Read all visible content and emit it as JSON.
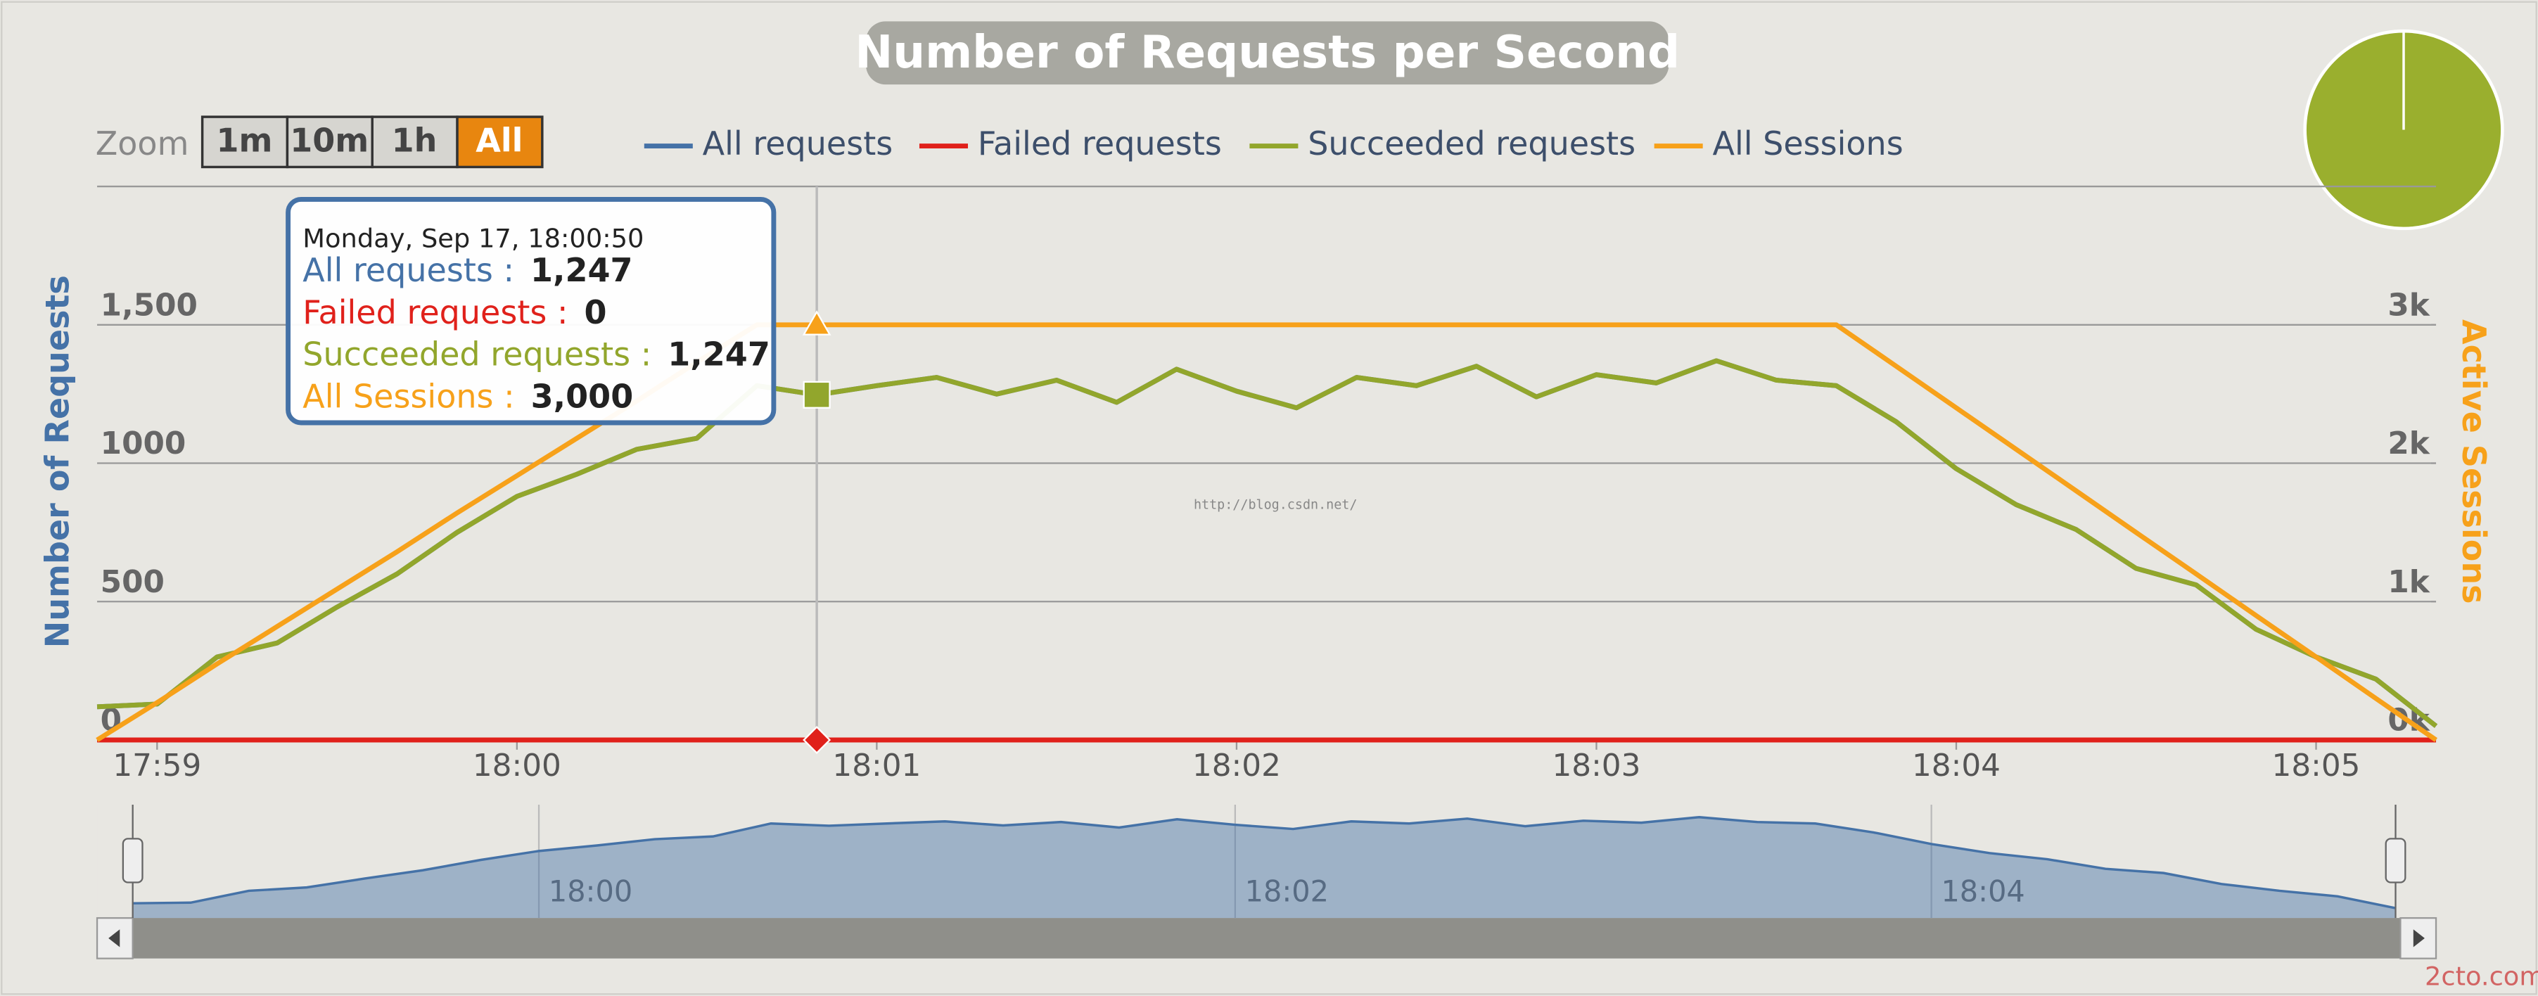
{
  "chart_data": {
    "type": "line",
    "title": "Number of Requests per Second",
    "y_title": "Number of Requests",
    "y2_title": "Active Sessions",
    "zoom": {
      "label": "Zoom",
      "buttons": [
        "1m",
        "10m",
        "1h",
        "All"
      ],
      "selected": 3
    },
    "x": [
      "17:58:50",
      "17:59:00",
      "17:59:10",
      "17:59:20",
      "17:59:30",
      "17:59:40",
      "17:59:50",
      "18:00:00",
      "18:00:10",
      "18:00:20",
      "18:00:30",
      "18:00:40",
      "18:00:50",
      "18:01:00",
      "18:01:10",
      "18:01:20",
      "18:01:30",
      "18:01:40",
      "18:01:50",
      "18:02:00",
      "18:02:10",
      "18:02:20",
      "18:02:30",
      "18:02:40",
      "18:02:50",
      "18:03:00",
      "18:03:10",
      "18:03:20",
      "18:03:30",
      "18:03:40",
      "18:03:50",
      "18:04:00",
      "18:04:10",
      "18:04:20",
      "18:04:30",
      "18:04:40",
      "18:04:50",
      "18:05:00",
      "18:05:10",
      "18:05:20"
    ],
    "xlim": [
      "17:58:50",
      "18:05:20"
    ],
    "xticks": [
      "17:59",
      "18:00",
      "18:01",
      "18:02",
      "18:03",
      "18:04",
      "18:05"
    ],
    "ylim": [
      0,
      2000
    ],
    "yticks": [
      0,
      500,
      1000,
      {
        "value": 1500,
        "label": "1,500"
      }
    ],
    "y2lim": [
      0,
      4000
    ],
    "y2ticks": [
      {
        "value": 0,
        "label": "0k"
      },
      {
        "value": 1000,
        "label": "1k"
      },
      {
        "value": 2000,
        "label": "2k"
      },
      {
        "value": 3000,
        "label": "3k"
      }
    ],
    "grid": true,
    "series": [
      {
        "name": "All requests",
        "color": "#4572a7",
        "values": [
          120,
          130,
          300,
          350,
          480,
          600,
          750,
          880,
          960,
          1050,
          1090,
          1280,
          1247,
          1280,
          1310,
          1250,
          1300,
          1220,
          1340,
          1260,
          1200,
          1310,
          1280,
          1350,
          1240,
          1320,
          1290,
          1370,
          1300,
          1280,
          1150,
          980,
          850,
          760,
          620,
          560,
          400,
          300,
          220,
          50
        ]
      },
      {
        "name": "Failed requests",
        "color": "#e0211b",
        "values": [
          0,
          0,
          0,
          0,
          0,
          0,
          0,
          0,
          0,
          0,
          0,
          0,
          0,
          0,
          0,
          0,
          0,
          0,
          0,
          0,
          0,
          0,
          0,
          0,
          0,
          0,
          0,
          0,
          0,
          0,
          0,
          0,
          0,
          0,
          0,
          0,
          0,
          0,
          0,
          0
        ]
      },
      {
        "name": "Succeeded requests",
        "color": "#92a62c",
        "values": [
          120,
          130,
          300,
          350,
          480,
          600,
          750,
          880,
          960,
          1050,
          1090,
          1280,
          1247,
          1280,
          1310,
          1250,
          1300,
          1220,
          1340,
          1260,
          1200,
          1310,
          1280,
          1350,
          1240,
          1320,
          1290,
          1370,
          1300,
          1280,
          1150,
          980,
          850,
          760,
          620,
          560,
          400,
          300,
          220,
          50
        ]
      },
      {
        "name": "All Sessions",
        "color": "#f7a11a",
        "axis": "y2",
        "values": [
          0,
          270,
          550,
          820,
          1090,
          1360,
          1640,
          1910,
          2180,
          2450,
          2730,
          3000,
          3000,
          3000,
          3000,
          3000,
          3000,
          3000,
          3000,
          3000,
          3000,
          3000,
          3000,
          3000,
          3000,
          3000,
          3000,
          3000,
          3000,
          3000,
          2700,
          2400,
          2100,
          1800,
          1500,
          1200,
          900,
          600,
          300,
          0
        ]
      }
    ],
    "tooltip": {
      "index": 12,
      "header": "Monday, Sep 17, 18:00:50",
      "rows": [
        {
          "label": "All requests :",
          "value": "1,247"
        },
        {
          "label": "Failed requests :",
          "value": "0"
        },
        {
          "label": "Succeeded requests :",
          "value": "1,247"
        },
        {
          "label": "All Sessions :",
          "value": "3,000"
        }
      ]
    },
    "navigator": {
      "series": 0,
      "xticks": [
        "18:00",
        "18:02",
        "18:04"
      ]
    },
    "watermarks": [
      "http://blog.csdn.net/",
      "2cto.com"
    ]
  }
}
